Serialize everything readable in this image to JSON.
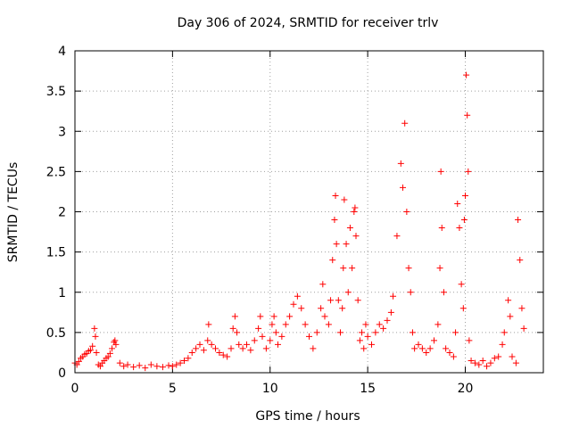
{
  "chart_data": {
    "type": "scatter",
    "title": "Day 306 of 2024, SRMTID for receiver trlv",
    "xlabel": "GPS time / hours",
    "ylabel": "SRMTID / TECUs",
    "xlim": [
      0,
      24
    ],
    "ylim": [
      0,
      4
    ],
    "xticks": [
      0,
      5,
      10,
      15,
      20
    ],
    "yticks": [
      0,
      0.5,
      1,
      1.5,
      2,
      2.5,
      3,
      3.5,
      4
    ],
    "grid": true,
    "marker": "+",
    "color": "#ff0000",
    "series": [
      {
        "name": "SRMTID",
        "points": [
          [
            0.0,
            0.12
          ],
          [
            0.1,
            0.1
          ],
          [
            0.2,
            0.14
          ],
          [
            0.3,
            0.18
          ],
          [
            0.4,
            0.2
          ],
          [
            0.5,
            0.23
          ],
          [
            0.6,
            0.24
          ],
          [
            0.7,
            0.27
          ],
          [
            0.8,
            0.28
          ],
          [
            0.9,
            0.33
          ],
          [
            1.0,
            0.55
          ],
          [
            1.05,
            0.45
          ],
          [
            1.1,
            0.25
          ],
          [
            1.2,
            0.1
          ],
          [
            1.3,
            0.08
          ],
          [
            1.4,
            0.12
          ],
          [
            1.5,
            0.15
          ],
          [
            1.6,
            0.18
          ],
          [
            1.7,
            0.2
          ],
          [
            1.8,
            0.24
          ],
          [
            1.9,
            0.3
          ],
          [
            2.0,
            0.38
          ],
          [
            2.05,
            0.4
          ],
          [
            2.1,
            0.35
          ],
          [
            2.3,
            0.12
          ],
          [
            2.5,
            0.08
          ],
          [
            2.7,
            0.1
          ],
          [
            3.0,
            0.07
          ],
          [
            3.3,
            0.09
          ],
          [
            3.6,
            0.06
          ],
          [
            3.9,
            0.1
          ],
          [
            4.2,
            0.08
          ],
          [
            4.5,
            0.07
          ],
          [
            4.8,
            0.09
          ],
          [
            5.0,
            0.08
          ],
          [
            5.2,
            0.1
          ],
          [
            5.4,
            0.12
          ],
          [
            5.6,
            0.15
          ],
          [
            5.8,
            0.18
          ],
          [
            6.0,
            0.25
          ],
          [
            6.2,
            0.3
          ],
          [
            6.4,
            0.35
          ],
          [
            6.6,
            0.28
          ],
          [
            6.8,
            0.4
          ],
          [
            6.85,
            0.6
          ],
          [
            7.0,
            0.35
          ],
          [
            7.2,
            0.3
          ],
          [
            7.4,
            0.25
          ],
          [
            7.6,
            0.22
          ],
          [
            7.8,
            0.2
          ],
          [
            8.0,
            0.3
          ],
          [
            8.1,
            0.55
          ],
          [
            8.2,
            0.7
          ],
          [
            8.3,
            0.5
          ],
          [
            8.4,
            0.35
          ],
          [
            8.6,
            0.3
          ],
          [
            8.8,
            0.35
          ],
          [
            9.0,
            0.28
          ],
          [
            9.2,
            0.4
          ],
          [
            9.4,
            0.55
          ],
          [
            9.5,
            0.7
          ],
          [
            9.6,
            0.45
          ],
          [
            9.8,
            0.3
          ],
          [
            10.0,
            0.4
          ],
          [
            10.1,
            0.6
          ],
          [
            10.2,
            0.7
          ],
          [
            10.3,
            0.5
          ],
          [
            10.4,
            0.35
          ],
          [
            10.6,
            0.45
          ],
          [
            10.8,
            0.6
          ],
          [
            11.0,
            0.7
          ],
          [
            11.2,
            0.85
          ],
          [
            11.4,
            0.95
          ],
          [
            11.6,
            0.8
          ],
          [
            11.8,
            0.6
          ],
          [
            12.0,
            0.45
          ],
          [
            12.2,
            0.3
          ],
          [
            12.4,
            0.5
          ],
          [
            12.6,
            0.8
          ],
          [
            12.7,
            1.1
          ],
          [
            12.8,
            0.7
          ],
          [
            13.0,
            0.6
          ],
          [
            13.1,
            0.9
          ],
          [
            13.2,
            1.4
          ],
          [
            13.3,
            1.9
          ],
          [
            13.35,
            2.2
          ],
          [
            13.4,
            1.6
          ],
          [
            13.5,
            0.9
          ],
          [
            13.6,
            0.5
          ],
          [
            13.7,
            0.8
          ],
          [
            13.75,
            1.3
          ],
          [
            13.8,
            2.15
          ],
          [
            13.9,
            1.6
          ],
          [
            14.0,
            1.0
          ],
          [
            14.1,
            1.8
          ],
          [
            14.2,
            1.3
          ],
          [
            14.3,
            2.0
          ],
          [
            14.35,
            2.05
          ],
          [
            14.4,
            1.7
          ],
          [
            14.5,
            0.9
          ],
          [
            14.6,
            0.4
          ],
          [
            14.7,
            0.5
          ],
          [
            14.8,
            0.3
          ],
          [
            14.9,
            0.6
          ],
          [
            15.0,
            0.45
          ],
          [
            15.2,
            0.35
          ],
          [
            15.4,
            0.5
          ],
          [
            15.6,
            0.6
          ],
          [
            15.8,
            0.55
          ],
          [
            16.0,
            0.65
          ],
          [
            16.2,
            0.75
          ],
          [
            16.3,
            0.95
          ],
          [
            16.5,
            1.7
          ],
          [
            16.7,
            2.6
          ],
          [
            16.8,
            2.3
          ],
          [
            16.9,
            3.1
          ],
          [
            17.0,
            2.0
          ],
          [
            17.1,
            1.3
          ],
          [
            17.2,
            1.0
          ],
          [
            17.3,
            0.5
          ],
          [
            17.4,
            0.3
          ],
          [
            17.6,
            0.35
          ],
          [
            17.8,
            0.3
          ],
          [
            18.0,
            0.25
          ],
          [
            18.2,
            0.3
          ],
          [
            18.4,
            0.4
          ],
          [
            18.6,
            0.6
          ],
          [
            18.7,
            1.3
          ],
          [
            18.75,
            2.5
          ],
          [
            18.8,
            1.8
          ],
          [
            18.9,
            1.0
          ],
          [
            19.0,
            0.3
          ],
          [
            19.2,
            0.25
          ],
          [
            19.4,
            0.2
          ],
          [
            19.5,
            0.5
          ],
          [
            19.6,
            2.1
          ],
          [
            19.7,
            1.8
          ],
          [
            19.8,
            1.1
          ],
          [
            19.9,
            0.8
          ],
          [
            19.95,
            1.9
          ],
          [
            20.0,
            2.2
          ],
          [
            20.05,
            3.7
          ],
          [
            20.1,
            3.2
          ],
          [
            20.15,
            2.5
          ],
          [
            20.2,
            0.4
          ],
          [
            20.3,
            0.15
          ],
          [
            20.5,
            0.12
          ],
          [
            20.7,
            0.1
          ],
          [
            20.9,
            0.15
          ],
          [
            21.1,
            0.08
          ],
          [
            21.3,
            0.12
          ],
          [
            21.5,
            0.18
          ],
          [
            21.7,
            0.2
          ],
          [
            21.9,
            0.35
          ],
          [
            22.0,
            0.5
          ],
          [
            22.2,
            0.9
          ],
          [
            22.3,
            0.7
          ],
          [
            22.4,
            0.2
          ],
          [
            22.6,
            0.12
          ],
          [
            22.7,
            1.9
          ],
          [
            22.8,
            1.4
          ],
          [
            22.9,
            0.8
          ],
          [
            23.0,
            0.55
          ]
        ]
      }
    ]
  }
}
